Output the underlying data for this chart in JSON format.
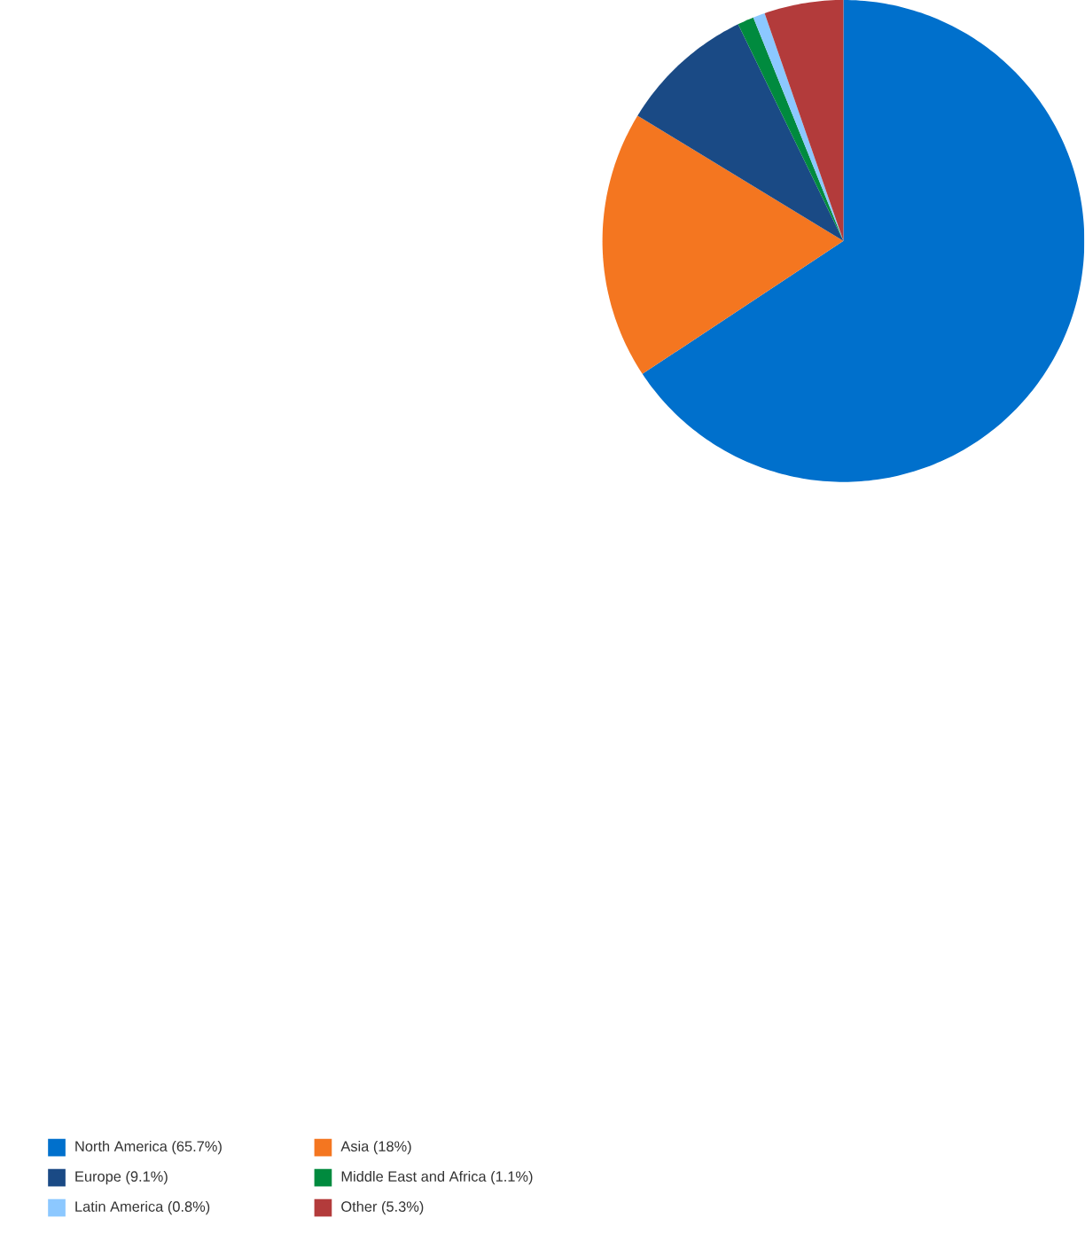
{
  "chart_data": {
    "type": "pie",
    "categories": [
      "North America (65.7%)",
      "Asia (18%)",
      "Europe (9.1%)",
      "Middle East and Africa (1.1%)",
      "Latin America (0.8%)",
      "Other (5.3%)"
    ],
    "values": [
      65.7,
      18,
      9.1,
      1.1,
      0.8,
      5.3
    ],
    "colors": [
      "#0070cc",
      "#f47620",
      "#1a4a85",
      "#008a3e",
      "#8cc8ff",
      "#b33b3b"
    ],
    "legend": "bottom"
  }
}
